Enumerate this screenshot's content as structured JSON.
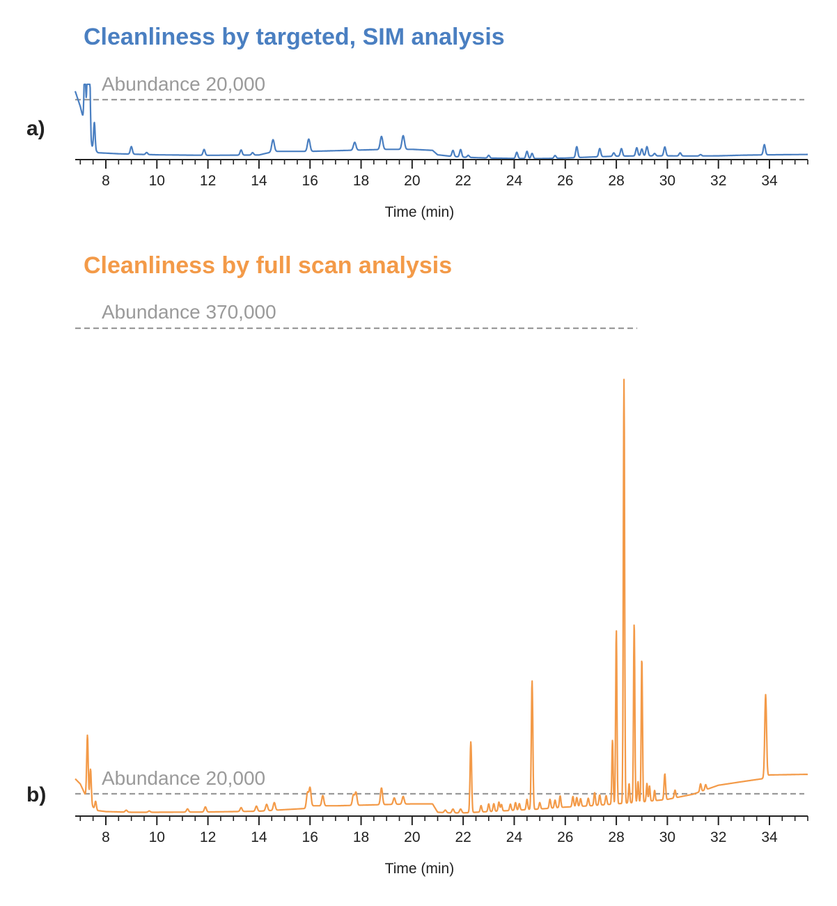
{
  "chart_data": [
    {
      "type": "line",
      "panel": "a)",
      "title": "Cleanliness by targeted, SIM analysis",
      "xlabel": "Time (min)",
      "xlim": [
        6.8,
        35.5
      ],
      "ylim": [
        0,
        22000
      ],
      "x_ticks": [
        8,
        10,
        12,
        14,
        16,
        18,
        20,
        22,
        24,
        26,
        28,
        30,
        32,
        34
      ],
      "grid": false,
      "reference_lines": [
        {
          "label": "Abundance 20,000",
          "value": 20000
        }
      ],
      "series": [
        {
          "color": "#4a7fc1",
          "baseline": [
            [
              6.8,
              20000
            ],
            [
              7.0,
              15500
            ],
            [
              7.15,
              11000
            ],
            [
              7.3,
              6500
            ],
            [
              7.5,
              3200
            ],
            [
              7.7,
              2000
            ],
            [
              8.5,
              1700
            ],
            [
              10,
              1400
            ],
            [
              12,
              1250
            ],
            [
              14,
              1350
            ],
            [
              14.6,
              2400
            ],
            [
              16,
              2400
            ],
            [
              18,
              2800
            ],
            [
              19,
              3000
            ],
            [
              20,
              3000
            ],
            [
              20.8,
              2700
            ],
            [
              21.0,
              1400
            ],
            [
              21.6,
              900
            ],
            [
              22,
              700
            ],
            [
              23,
              450
            ],
            [
              24,
              350
            ],
            [
              25,
              300
            ],
            [
              26,
              450
            ],
            [
              27,
              750
            ],
            [
              28,
              1000
            ],
            [
              29,
              1100
            ],
            [
              30,
              1100
            ],
            [
              31,
              1050
            ],
            [
              32,
              1100
            ],
            [
              33,
              1300
            ],
            [
              34,
              1400
            ],
            [
              35.5,
              1500
            ]
          ],
          "peaks": [
            [
              7.18,
              20000,
              0.03
            ],
            [
              7.28,
              18500,
              0.03
            ],
            [
              7.36,
              23000,
              0.03
            ],
            [
              7.55,
              8000,
              0.03
            ],
            [
              9.0,
              2200,
              0.04
            ],
            [
              9.6,
              600,
              0.04
            ],
            [
              11.85,
              1700,
              0.04
            ],
            [
              13.3,
              1500,
              0.04
            ],
            [
              13.75,
              700,
              0.04
            ],
            [
              14.55,
              3500,
              0.05
            ],
            [
              15.95,
              3600,
              0.05
            ],
            [
              17.75,
              2300,
              0.05
            ],
            [
              18.8,
              3800,
              0.05
            ],
            [
              19.65,
              4000,
              0.05
            ],
            [
              21.6,
              1800,
              0.04
            ],
            [
              21.9,
              2200,
              0.04
            ],
            [
              22.2,
              600,
              0.04
            ],
            [
              23.0,
              800,
              0.04
            ],
            [
              24.1,
              1800,
              0.04
            ],
            [
              24.5,
              2100,
              0.04
            ],
            [
              24.7,
              1500,
              0.04
            ],
            [
              25.6,
              800,
              0.04
            ],
            [
              26.45,
              3200,
              0.04
            ],
            [
              27.35,
              2400,
              0.04
            ],
            [
              27.9,
              1000,
              0.04
            ],
            [
              28.2,
              2200,
              0.04
            ],
            [
              28.8,
              2400,
              0.04
            ],
            [
              29.0,
              2000,
              0.04
            ],
            [
              29.2,
              2700,
              0.04
            ],
            [
              29.5,
              700,
              0.04
            ],
            [
              29.9,
              2600,
              0.04
            ],
            [
              30.5,
              900,
              0.04
            ],
            [
              31.3,
              400,
              0.04
            ],
            [
              33.8,
              3000,
              0.04
            ]
          ]
        }
      ]
    },
    {
      "type": "line",
      "panel": "b)",
      "title": "Cleanliness by full scan analysis",
      "xlabel": "Time (min)",
      "xlim": [
        6.8,
        35.5
      ],
      "ylim": [
        0,
        380000
      ],
      "x_ticks": [
        8,
        10,
        12,
        14,
        16,
        18,
        20,
        22,
        24,
        26,
        28,
        30,
        32,
        34
      ],
      "grid": false,
      "reference_lines": [
        {
          "label": "Abundance 370,000",
          "value": 370000
        },
        {
          "label": "Abundance 20,000",
          "value": 20000
        }
      ],
      "series": [
        {
          "color": "#f39a48",
          "baseline": [
            [
              6.8,
              29000
            ],
            [
              7.0,
              25000
            ],
            [
              7.3,
              12000
            ],
            [
              7.6,
              4500
            ],
            [
              8,
              3500
            ],
            [
              9,
              3000
            ],
            [
              10,
              3000
            ],
            [
              12,
              3200
            ],
            [
              14,
              3800
            ],
            [
              15,
              5000
            ],
            [
              15.9,
              6000
            ],
            [
              16,
              8000
            ],
            [
              17,
              8000
            ],
            [
              18,
              8500
            ],
            [
              19,
              9000
            ],
            [
              20,
              9500
            ],
            [
              20.8,
              9500
            ],
            [
              21.0,
              3000
            ],
            [
              21.5,
              2500
            ],
            [
              22,
              2500
            ],
            [
              23,
              3500
            ],
            [
              24,
              4500
            ],
            [
              25,
              5500
            ],
            [
              26,
              7000
            ],
            [
              27,
              8000
            ],
            [
              28,
              9500
            ],
            [
              29,
              11000
            ],
            [
              30,
              13000
            ],
            [
              31,
              17000
            ],
            [
              32,
              24000
            ],
            [
              33,
              27000
            ],
            [
              33.7,
              29000
            ],
            [
              34.0,
              32000
            ],
            [
              35.5,
              32500
            ]
          ],
          "peaks": [
            [
              7.28,
              50000,
              0.03
            ],
            [
              7.4,
              27000,
              0.03
            ],
            [
              7.6,
              7000,
              0.03
            ],
            [
              8.8,
              1500,
              0.04
            ],
            [
              9.7,
              1000,
              0.04
            ],
            [
              11.2,
              2500,
              0.04
            ],
            [
              11.9,
              4000,
              0.04
            ],
            [
              13.3,
              3000,
              0.04
            ],
            [
              13.9,
              4000,
              0.04
            ],
            [
              14.3,
              5000,
              0.04
            ],
            [
              14.6,
              6000,
              0.04
            ],
            [
              15.9,
              12000,
              0.04
            ],
            [
              16.0,
              14000,
              0.04
            ],
            [
              16.5,
              8000,
              0.04
            ],
            [
              17.7,
              8000,
              0.04
            ],
            [
              17.8,
              10000,
              0.04
            ],
            [
              18.8,
              13000,
              0.04
            ],
            [
              19.3,
              5000,
              0.04
            ],
            [
              19.65,
              6000,
              0.04
            ],
            [
              21.3,
              2000,
              0.04
            ],
            [
              21.6,
              3000,
              0.04
            ],
            [
              21.9,
              3000,
              0.04
            ],
            [
              22.3,
              55000,
              0.03
            ],
            [
              22.7,
              5000,
              0.03
            ],
            [
              23.0,
              6000,
              0.03
            ],
            [
              23.2,
              6000,
              0.03
            ],
            [
              23.4,
              7000,
              0.03
            ],
            [
              23.5,
              5000,
              0.03
            ],
            [
              23.85,
              5000,
              0.03
            ],
            [
              24.05,
              6000,
              0.03
            ],
            [
              24.2,
              5000,
              0.03
            ],
            [
              24.5,
              8000,
              0.03
            ],
            [
              24.7,
              100000,
              0.03
            ],
            [
              25.0,
              5000,
              0.03
            ],
            [
              25.4,
              7000,
              0.03
            ],
            [
              25.6,
              6000,
              0.03
            ],
            [
              25.8,
              9000,
              0.03
            ],
            [
              26.3,
              8000,
              0.03
            ],
            [
              26.45,
              7000,
              0.03
            ],
            [
              26.6,
              6000,
              0.03
            ],
            [
              26.9,
              6000,
              0.03
            ],
            [
              27.15,
              10000,
              0.03
            ],
            [
              27.35,
              8000,
              0.03
            ],
            [
              27.6,
              7000,
              0.03
            ],
            [
              27.85,
              50000,
              0.025
            ],
            [
              28.0,
              135000,
              0.025
            ],
            [
              28.3,
              330000,
              0.025
            ],
            [
              28.5,
              15000,
              0.025
            ],
            [
              28.7,
              140000,
              0.025
            ],
            [
              28.85,
              16000,
              0.025
            ],
            [
              29.0,
              112000,
              0.025
            ],
            [
              29.2,
              14000,
              0.025
            ],
            [
              29.3,
              12000,
              0.025
            ],
            [
              29.5,
              8000,
              0.025
            ],
            [
              29.9,
              20000,
              0.03
            ],
            [
              30.3,
              6000,
              0.03
            ],
            [
              31.3,
              6000,
              0.03
            ],
            [
              31.5,
              4000,
              0.03
            ],
            [
              33.85,
              64000,
              0.035
            ]
          ]
        }
      ]
    }
  ]
}
